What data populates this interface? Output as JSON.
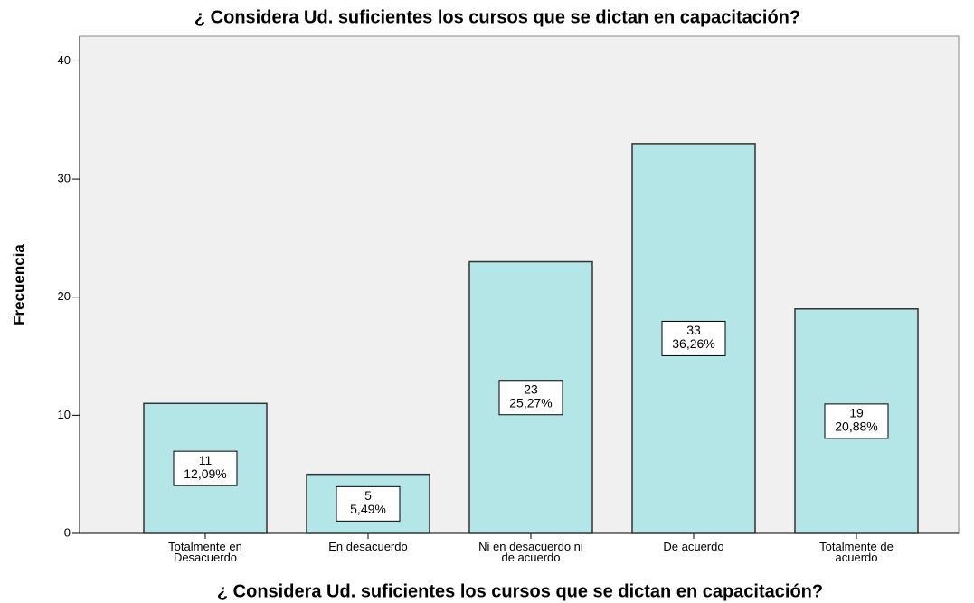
{
  "chart_data": {
    "type": "bar",
    "title": "¿ Considera Ud. suficientes los cursos que se dictan en capacitación?",
    "x_label": "¿ Considera Ud. suficientes los cursos que se dictan en capacitación?",
    "y_label": "Frecuencia",
    "categories": [
      [
        "Totalmente en",
        "Desacuerdo"
      ],
      [
        "En desacuerdo"
      ],
      [
        "Ni en desacuerdo ni",
        "de acuerdo"
      ],
      [
        "De acuerdo"
      ],
      [
        "Totalmente de",
        "acuerdo"
      ]
    ],
    "values": [
      11,
      5,
      23,
      33,
      19
    ],
    "percent_labels": [
      "12,09%",
      "5,49%",
      "25,27%",
      "36,26%",
      "20,88%"
    ],
    "color": "#b4e6e8",
    "ylim": [
      0,
      42.1
    ],
    "yticks": [
      0,
      10,
      20,
      30,
      40
    ]
  }
}
